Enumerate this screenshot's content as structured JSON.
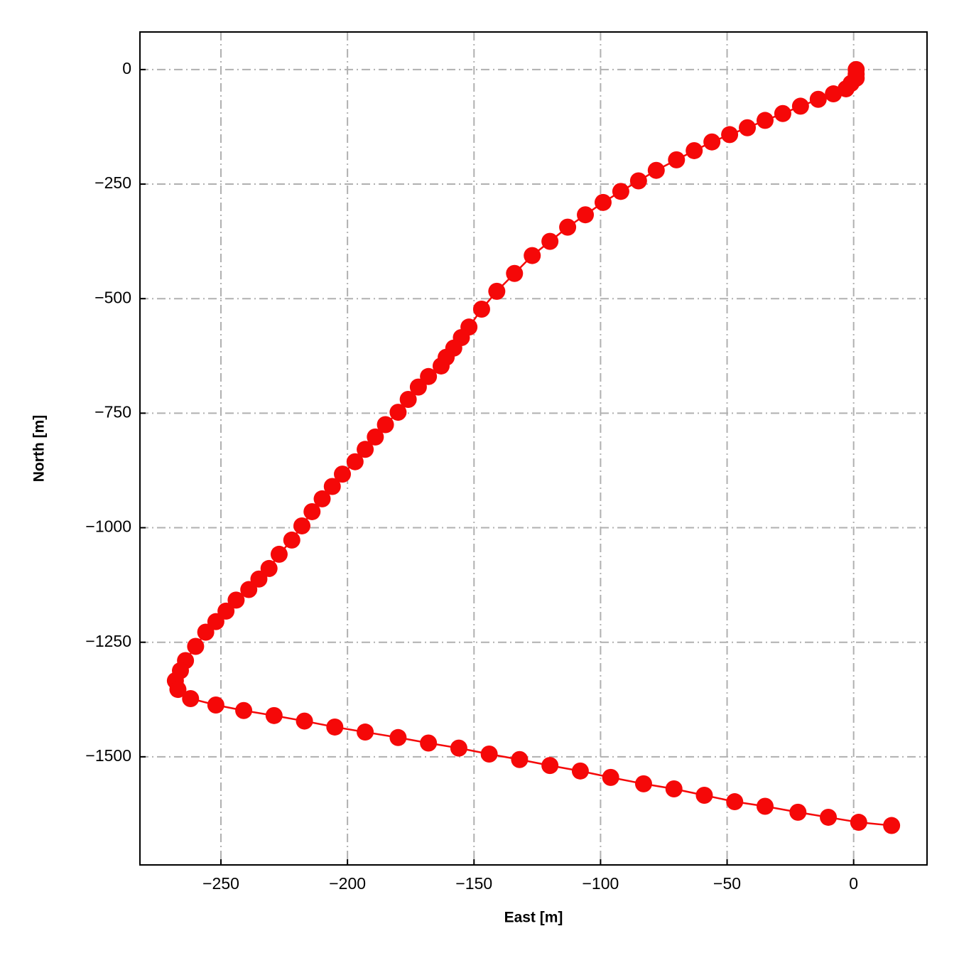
{
  "chart_data": {
    "type": "line",
    "markers": true,
    "color": "#f50808",
    "xlabel": "East [m]",
    "ylabel": "North [m]",
    "x": [
      1,
      1,
      1,
      -1,
      -3,
      -8,
      -14,
      -21,
      -28,
      -35,
      -42,
      -49,
      -56,
      -63,
      -70,
      -78,
      -85,
      -92,
      -99,
      -106,
      -113,
      -120,
      -127,
      -134,
      -141,
      -147,
      -152,
      -155,
      -158,
      -161,
      -163,
      -168,
      -172,
      -176,
      -180,
      -185,
      -189,
      -193,
      -197,
      -202,
      -206,
      -210,
      -214,
      -218,
      -222,
      -227,
      -231,
      -235,
      -239,
      -244,
      -248,
      -252,
      -256,
      -260,
      -264,
      -266,
      -268,
      -267,
      -262,
      -252,
      -241,
      -229,
      -217,
      -205,
      -193,
      -180,
      -168,
      -156,
      -144,
      -132,
      -120,
      -108,
      -96,
      -83,
      -71,
      -59,
      -47,
      -35,
      -22,
      -10,
      2,
      15
    ],
    "values": [
      0,
      -10,
      -19,
      -30,
      -42,
      -53,
      -65,
      -80,
      -96,
      -111,
      -127,
      -142,
      -158,
      -177,
      -197,
      -220,
      -243,
      -266,
      -290,
      -317,
      -344,
      -375,
      -406,
      -445,
      -484,
      -523,
      -562,
      -585,
      -608,
      -628,
      -647,
      -670,
      -693,
      -720,
      -748,
      -775,
      -802,
      -829,
      -856,
      -883,
      -910,
      -937,
      -965,
      -996,
      -1027,
      -1058,
      -1089,
      -1112,
      -1135,
      -1158,
      -1182,
      -1205,
      -1228,
      -1259,
      -1290,
      -1312,
      -1334,
      -1353,
      -1373,
      -1387,
      -1399,
      -1410,
      -1422,
      -1435,
      -1446,
      -1458,
      -1470,
      -1481,
      -1494,
      -1506,
      -1519,
      -1531,
      -1545,
      -1559,
      -1570,
      -1584,
      -1598,
      -1608,
      -1621,
      -1632,
      -1643,
      -1650
    ],
    "xlim": [
      -282,
      29
    ],
    "xticks": [
      {
        "value": -250,
        "label": "−250"
      },
      {
        "value": -200,
        "label": "−200"
      },
      {
        "value": -150,
        "label": "−150"
      },
      {
        "value": -100,
        "label": "−100"
      },
      {
        "value": -50,
        "label": "−50"
      },
      0
    ],
    "ylim": [
      -1736,
      82
    ],
    "yticks": [
      0,
      {
        "value": -250,
        "label": "−250"
      },
      {
        "value": -500,
        "label": "−500"
      },
      {
        "value": -750,
        "label": "−750"
      },
      {
        "value": -1000,
        "label": "−1000"
      },
      {
        "value": -1250,
        "label": "−1250"
      },
      {
        "value": -1500,
        "label": "−1500"
      }
    ],
    "grid": true
  }
}
